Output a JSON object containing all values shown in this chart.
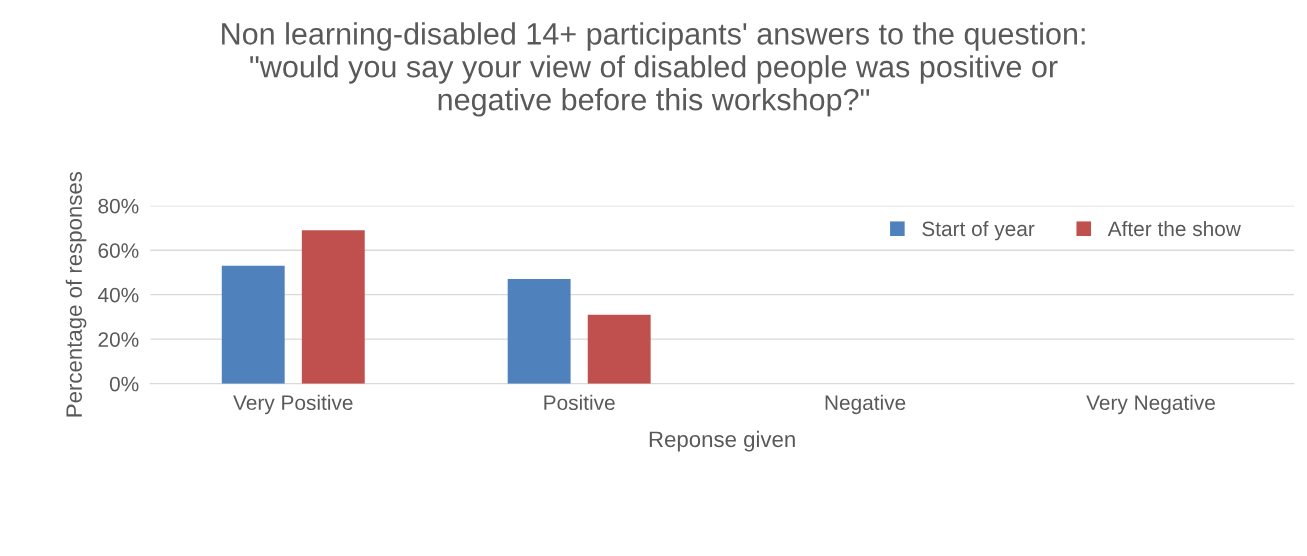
{
  "chart_data": {
    "type": "bar",
    "title": "Non learning-disabled 14+ participants' answers to the question:\n\"would you say your view of disabled people was positive or\nnegative before this workshop?\"",
    "xlabel": "Reponse given",
    "ylabel": "Percentage of responses",
    "categories": [
      "Very Positive",
      "Positive",
      "Negative",
      "Very Negative"
    ],
    "series": [
      {
        "name": "Start of year",
        "color": "#4f81bd",
        "values": [
          53,
          47,
          0,
          0
        ]
      },
      {
        "name": "After the show",
        "color": "#c0504d",
        "values": [
          69,
          31,
          0,
          0
        ]
      }
    ],
    "ylim": [
      0,
      80
    ],
    "yticks": [
      {
        "value": 0,
        "label": "0%"
      },
      {
        "value": 20,
        "label": "20%"
      },
      {
        "value": 40,
        "label": "40%"
      },
      {
        "value": 60,
        "label": "60%"
      },
      {
        "value": 80,
        "label": "80%"
      }
    ],
    "grid": "y",
    "legend": "top right"
  }
}
